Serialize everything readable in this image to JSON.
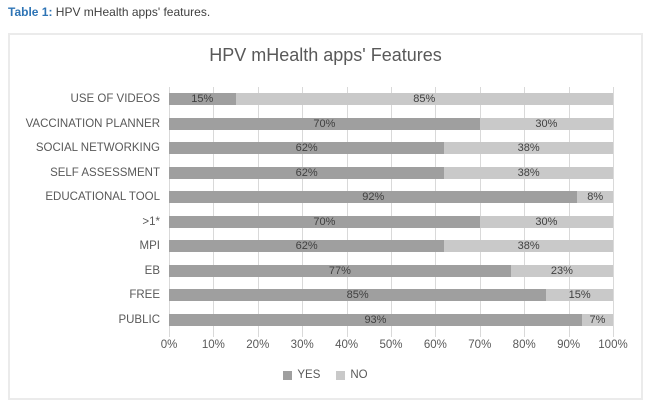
{
  "caption": {
    "label": "Table 1:",
    "text": " HPV mHealth apps' features."
  },
  "chart_data": {
    "type": "bar",
    "orientation": "horizontal",
    "stacked": true,
    "title": "HPV mHealth apps' Features",
    "categories": [
      "USE OF VIDEOS",
      "VACCINATION PLANNER",
      "SOCIAL NETWORKING",
      "SELF ASSESSMENT",
      "EDUCATIONAL TOOL",
      ">1*",
      "MPI",
      "EB",
      "FREE",
      "PUBLIC"
    ],
    "series": [
      {
        "name": "YES",
        "color": "#9f9f9f",
        "values": [
          15,
          70,
          62,
          62,
          92,
          70,
          62,
          77,
          85,
          93
        ]
      },
      {
        "name": "NO",
        "color": "#c9c9c9",
        "values": [
          85,
          30,
          38,
          38,
          8,
          30,
          38,
          23,
          15,
          7
        ]
      }
    ],
    "data_labels": {
      "YES": [
        "15%",
        "70%",
        "62%",
        "62%",
        "92%",
        "70%",
        "62%",
        "77%",
        "85%",
        "93%"
      ],
      "NO": [
        "85%",
        "30%",
        "38%",
        "38%",
        "8%",
        "30%",
        "38%",
        "23%",
        "15%",
        "7%"
      ]
    },
    "x_ticks": [
      "0%",
      "10%",
      "20%",
      "30%",
      "40%",
      "50%",
      "60%",
      "70%",
      "80%",
      "90%",
      "100%"
    ],
    "xlim": [
      0,
      100
    ],
    "grid": true,
    "legend_position": "bottom",
    "colors": {
      "yes_bar": "#9f9f9f",
      "no_bar": "#c9c9c9",
      "gridline": "#d9d9d9",
      "text": "#595959",
      "data_label": "#404040",
      "caption_accent": "#2E74B5"
    }
  }
}
